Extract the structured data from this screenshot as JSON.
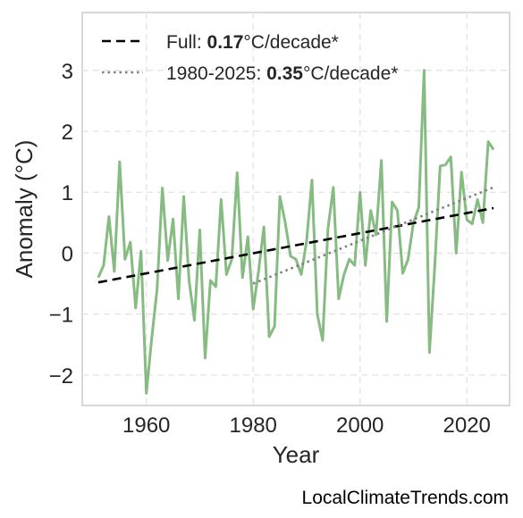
{
  "chart_data": {
    "type": "line",
    "xlabel": "Year",
    "ylabel": "Anomaly (°C)",
    "xlim": [
      1948,
      2028
    ],
    "ylim": [
      -2.5,
      3.95
    ],
    "xticks": [
      1960,
      1980,
      2000,
      2020
    ],
    "yticks": [
      -2,
      -1,
      0,
      1,
      2,
      3
    ],
    "ytick_labels": [
      "−2",
      "−1",
      "0",
      "1",
      "2",
      "3"
    ],
    "grid": true,
    "legend_position": "top-left",
    "series": [
      {
        "style": "solid",
        "color": "#86bb82",
        "x": [
          1951,
          1952,
          1953,
          1954,
          1955,
          1956,
          1957,
          1958,
          1959,
          1960,
          1961,
          1962,
          1963,
          1964,
          1965,
          1966,
          1967,
          1968,
          1969,
          1970,
          1971,
          1972,
          1973,
          1974,
          1975,
          1976,
          1977,
          1978,
          1979,
          1980,
          1981,
          1982,
          1983,
          1984,
          1985,
          1986,
          1987,
          1988,
          1989,
          1990,
          1991,
          1992,
          1993,
          1994,
          1995,
          1996,
          1997,
          1998,
          1999,
          2000,
          2001,
          2002,
          2003,
          2004,
          2005,
          2006,
          2007,
          2008,
          2009,
          2010,
          2011,
          2012,
          2013,
          2014,
          2015,
          2016,
          2017,
          2018,
          2019,
          2020,
          2021,
          2022,
          2023,
          2024,
          2025
        ],
        "y": [
          -0.4,
          -0.2,
          0.6,
          -0.3,
          1.5,
          -0.1,
          0.18,
          -0.9,
          0.03,
          -2.3,
          -1.4,
          -0.6,
          1.07,
          -0.12,
          0.56,
          -0.75,
          0.93,
          -0.45,
          -1.1,
          0.38,
          -1.72,
          -0.45,
          -0.55,
          0.88,
          -0.35,
          -0.1,
          1.32,
          -0.4,
          0.27,
          -0.92,
          -0.3,
          0.43,
          -1.37,
          -1.2,
          0.93,
          0.5,
          -0.05,
          -0.1,
          -0.35,
          0.2,
          1.2,
          -1.0,
          -1.43,
          0.4,
          1.08,
          -0.75,
          -0.35,
          -0.1,
          -0.2,
          1.0,
          -0.2,
          0.7,
          0.3,
          1.52,
          -1.12,
          0.84,
          0.7,
          -0.33,
          -0.1,
          0.5,
          0.75,
          3.0,
          -1.63,
          -0.2,
          1.43,
          1.45,
          1.58,
          0.0,
          1.33,
          0.55,
          0.48,
          0.88,
          0.5,
          1.83,
          1.7
        ]
      },
      {
        "name": "Full",
        "style": "dashed",
        "color": "#000000",
        "x": [
          1951,
          2025
        ],
        "y": [
          -0.48,
          0.74
        ],
        "trend": "0.17",
        "unit": "°C/decade*"
      },
      {
        "name": "1980-2025",
        "style": "dotted",
        "color": "#808080",
        "x": [
          1980,
          2025
        ],
        "y": [
          -0.5,
          1.08
        ],
        "trend": "0.35",
        "unit": "°C/decade*"
      }
    ]
  },
  "credit": "LocalClimateTrends.com"
}
